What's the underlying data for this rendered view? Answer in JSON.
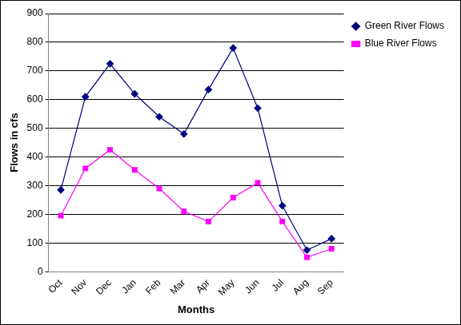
{
  "chart_data": {
    "type": "line",
    "x_label": "Months",
    "y_label": "Flows in cfs",
    "categories": [
      "Oct",
      "Nov",
      "Dec",
      "Jan",
      "Feb",
      "Mar",
      "Apr",
      "May",
      "Jun",
      "Jul",
      "Aug",
      "Sep"
    ],
    "series": [
      {
        "name": "Green River Flows",
        "color": "#000080",
        "marker": "diamond",
        "line_style": "solid",
        "values": [
          285,
          610,
          725,
          620,
          540,
          480,
          635,
          780,
          570,
          230,
          75,
          115
        ]
      },
      {
        "name": "Blue River Flows",
        "color": "#ff00ff",
        "marker": "square",
        "line_style": "solid",
        "values": [
          195,
          360,
          425,
          355,
          290,
          210,
          175,
          258,
          310,
          175,
          50,
          80
        ]
      }
    ],
    "ylim": [
      0,
      900
    ],
    "yticks": [
      0,
      100,
      200,
      300,
      400,
      500,
      600,
      700,
      800,
      900
    ],
    "grid": true,
    "legend": "upper right"
  }
}
